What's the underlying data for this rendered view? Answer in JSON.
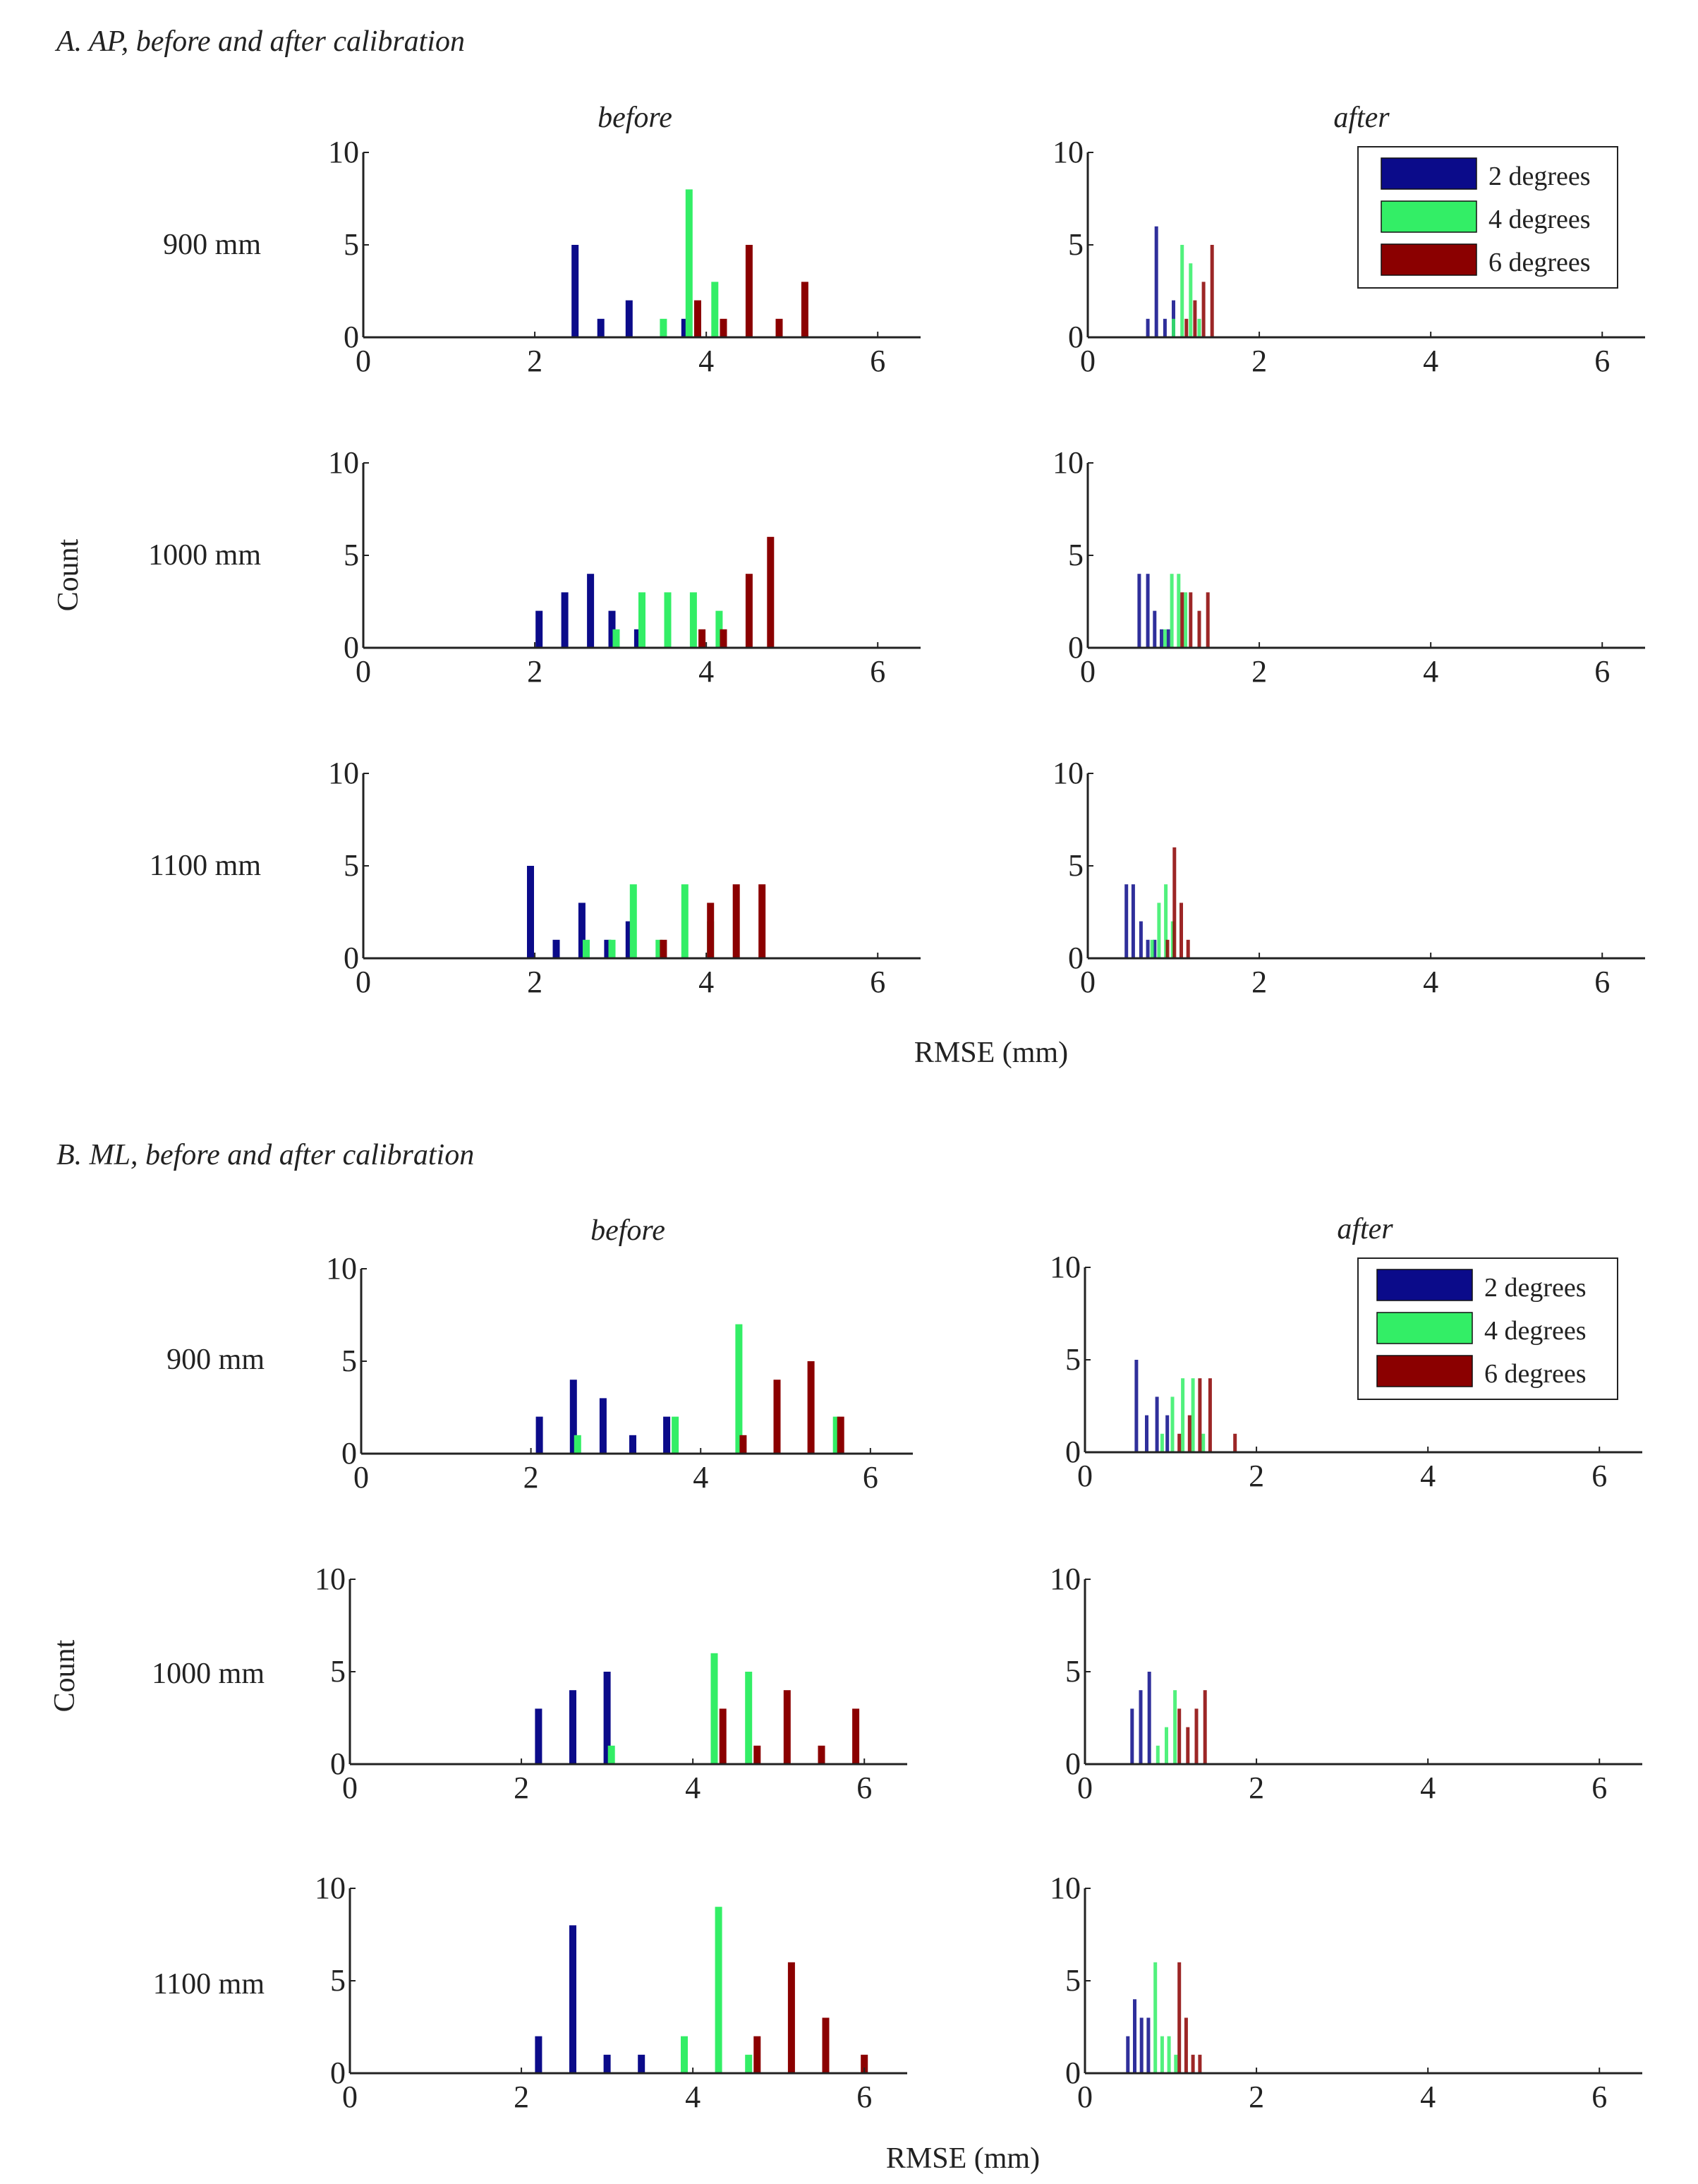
{
  "legend": [
    {
      "label": "2 degrees",
      "color": "#0b0b8a"
    },
    {
      "label": "4 degrees",
      "color": "#33ee66"
    },
    {
      "label": "6 degrees",
      "color": "#8b0000"
    }
  ],
  "axis": {
    "xlim": [
      0,
      6.5
    ],
    "ylim": [
      0,
      10
    ],
    "xticks": [
      "0",
      "2",
      "4",
      "6"
    ],
    "yticks": [
      "0",
      "5",
      "10"
    ]
  },
  "texts": {
    "xlabel": "RMSE (mm)",
    "ylabel": "Count"
  },
  "chart_data": [
    {
      "type": "bar",
      "section": "A",
      "title": "A.  AP, before and after calibration",
      "xlabel": "RMSE (mm)",
      "ylabel": "Count",
      "panels": [
        {
          "id": "A-900-before",
          "row_label": "900 mm",
          "col_title": "before",
          "bars": [
            {
              "series": "2 degrees",
              "x": [
                2.47,
                2.77,
                3.1,
                3.75
              ],
              "y": [
                5,
                1,
                2,
                1
              ]
            },
            {
              "series": "4 degrees",
              "x": [
                3.5,
                3.8,
                4.1
              ],
              "y": [
                1,
                8,
                3
              ]
            },
            {
              "series": "6 degrees",
              "x": [
                3.9,
                4.2,
                4.5,
                4.85,
                5.15
              ],
              "y": [
                2,
                1,
                5,
                1,
                3
              ]
            }
          ]
        },
        {
          "id": "A-900-after",
          "row_label": "900 mm",
          "col_title": "after",
          "bars": [
            {
              "series": "2 degrees",
              "x": [
                0.7,
                0.8,
                0.9,
                1.0
              ],
              "y": [
                1,
                6,
                1,
                2
              ]
            },
            {
              "series": "4 degrees",
              "x": [
                1.0,
                1.1,
                1.2,
                1.3
              ],
              "y": [
                1,
                5,
                4,
                1
              ]
            },
            {
              "series": "6 degrees",
              "x": [
                1.15,
                1.25,
                1.35,
                1.45
              ],
              "y": [
                1,
                2,
                3,
                5
              ]
            }
          ]
        },
        {
          "id": "A-1000-before",
          "row_label": "1000 mm",
          "col_title": "before",
          "bars": [
            {
              "series": "2 degrees",
              "x": [
                2.05,
                2.35,
                2.65,
                2.9,
                3.2
              ],
              "y": [
                2,
                3,
                4,
                2,
                1
              ]
            },
            {
              "series": "4 degrees",
              "x": [
                2.95,
                3.25,
                3.55,
                3.85,
                4.15
              ],
              "y": [
                1,
                3,
                3,
                3,
                2
              ]
            },
            {
              "series": "6 degrees",
              "x": [
                3.95,
                4.2,
                4.5,
                4.75
              ],
              "y": [
                1,
                1,
                4,
                6
              ]
            }
          ]
        },
        {
          "id": "A-1000-after",
          "row_label": "1000 mm",
          "col_title": "after",
          "bars": [
            {
              "series": "2 degrees",
              "x": [
                0.6,
                0.7,
                0.78,
                0.86,
                0.94
              ],
              "y": [
                4,
                4,
                2,
                1,
                1
              ]
            },
            {
              "series": "4 degrees",
              "x": [
                0.9,
                0.98,
                1.06,
                1.14
              ],
              "y": [
                1,
                4,
                4,
                3
              ]
            },
            {
              "series": "6 degrees",
              "x": [
                1.1,
                1.2,
                1.3,
                1.4
              ],
              "y": [
                3,
                3,
                2,
                3
              ]
            }
          ]
        },
        {
          "id": "A-1100-before",
          "row_label": "1100 mm",
          "col_title": "before",
          "bars": [
            {
              "series": "2 degrees",
              "x": [
                1.95,
                2.25,
                2.55,
                2.85,
                3.1
              ],
              "y": [
                5,
                1,
                3,
                1,
                2
              ]
            },
            {
              "series": "4 degrees",
              "x": [
                2.6,
                2.9,
                3.15,
                3.45,
                3.75,
                4.05
              ],
              "y": [
                1,
                1,
                4,
                1,
                4,
                2
              ]
            },
            {
              "series": "6 degrees",
              "x": [
                3.5,
                4.05,
                4.35,
                4.65
              ],
              "y": [
                1,
                3,
                4,
                4
              ]
            }
          ]
        },
        {
          "id": "A-1100-after",
          "row_label": "1100 mm",
          "col_title": "after",
          "bars": [
            {
              "series": "2 degrees",
              "x": [
                0.45,
                0.53,
                0.62,
                0.7,
                0.78
              ],
              "y": [
                4,
                4,
                2,
                1,
                1
              ]
            },
            {
              "series": "4 degrees",
              "x": [
                0.75,
                0.83,
                0.91,
                0.99
              ],
              "y": [
                1,
                3,
                4,
                2
              ]
            },
            {
              "series": "6 degrees",
              "x": [
                0.93,
                1.01,
                1.09,
                1.17
              ],
              "y": [
                1,
                6,
                3,
                1
              ]
            }
          ]
        }
      ]
    },
    {
      "type": "bar",
      "section": "B",
      "title": "B.  ML, before and after calibration",
      "xlabel": "RMSE (mm)",
      "ylabel": "Count",
      "panels": [
        {
          "id": "B-900-before",
          "row_label": "900 mm",
          "col_title": "before",
          "bars": [
            {
              "series": "2 degrees",
              "x": [
                2.1,
                2.5,
                2.85,
                3.2,
                3.6
              ],
              "y": [
                2,
                4,
                3,
                1,
                2
              ]
            },
            {
              "series": "4 degrees",
              "x": [
                2.55,
                3.7,
                4.45,
                5.6
              ],
              "y": [
                1,
                2,
                7,
                2
              ]
            },
            {
              "series": "6 degrees",
              "x": [
                4.5,
                4.9,
                5.3,
                5.65
              ],
              "y": [
                1,
                4,
                5,
                2
              ]
            }
          ]
        },
        {
          "id": "B-900-after",
          "row_label": "900 mm",
          "col_title": "after",
          "bars": [
            {
              "series": "2 degrees",
              "x": [
                0.6,
                0.72,
                0.84,
                0.96
              ],
              "y": [
                5,
                2,
                3,
                2
              ]
            },
            {
              "series": "4 degrees",
              "x": [
                0.9,
                1.02,
                1.14,
                1.26,
                1.38
              ],
              "y": [
                1,
                3,
                4,
                4,
                1
              ]
            },
            {
              "series": "6 degrees",
              "x": [
                1.1,
                1.22,
                1.34,
                1.46,
                1.75
              ],
              "y": [
                1,
                2,
                4,
                4,
                1
              ]
            }
          ]
        },
        {
          "id": "B-1000-before",
          "row_label": "1000 mm",
          "col_title": "before",
          "bars": [
            {
              "series": "2 degrees",
              "x": [
                2.2,
                2.6,
                3.0
              ],
              "y": [
                3,
                4,
                5
              ]
            },
            {
              "series": "4 degrees",
              "x": [
                3.05,
                4.25,
                4.65
              ],
              "y": [
                1,
                6,
                5
              ]
            },
            {
              "series": "6 degrees",
              "x": [
                4.35,
                4.75,
                5.1,
                5.5,
                5.9
              ],
              "y": [
                3,
                1,
                4,
                1,
                3
              ]
            }
          ]
        },
        {
          "id": "B-1000-after",
          "row_label": "1000 mm",
          "col_title": "after",
          "bars": [
            {
              "series": "2 degrees",
              "x": [
                0.55,
                0.65,
                0.75
              ],
              "y": [
                3,
                4,
                5
              ]
            },
            {
              "series": "4 degrees",
              "x": [
                0.85,
                0.95,
                1.05
              ],
              "y": [
                1,
                2,
                4
              ]
            },
            {
              "series": "6 degrees",
              "x": [
                1.1,
                1.2,
                1.3,
                1.4
              ],
              "y": [
                3,
                2,
                3,
                4
              ]
            }
          ]
        },
        {
          "id": "B-1100-before",
          "row_label": "1100 mm",
          "col_title": "before",
          "bars": [
            {
              "series": "2 degrees",
              "x": [
                2.2,
                2.6,
                3.0,
                3.4
              ],
              "y": [
                2,
                8,
                1,
                1
              ]
            },
            {
              "series": "4 degrees",
              "x": [
                3.9,
                4.3,
                4.65
              ],
              "y": [
                2,
                9,
                1
              ]
            },
            {
              "series": "6 degrees",
              "x": [
                4.75,
                5.15,
                5.55,
                6.0
              ],
              "y": [
                2,
                6,
                3,
                1
              ]
            }
          ]
        },
        {
          "id": "B-1100-after",
          "row_label": "1100 mm",
          "col_title": "after",
          "bars": [
            {
              "series": "2 degrees",
              "x": [
                0.5,
                0.58,
                0.66,
                0.74
              ],
              "y": [
                2,
                4,
                3,
                3
              ]
            },
            {
              "series": "4 degrees",
              "x": [
                0.82,
                0.9,
                0.98,
                1.06
              ],
              "y": [
                6,
                2,
                2,
                1
              ]
            },
            {
              "series": "6 degrees",
              "x": [
                1.1,
                1.18,
                1.26,
                1.34
              ],
              "y": [
                6,
                3,
                1,
                1
              ]
            }
          ]
        }
      ]
    }
  ]
}
